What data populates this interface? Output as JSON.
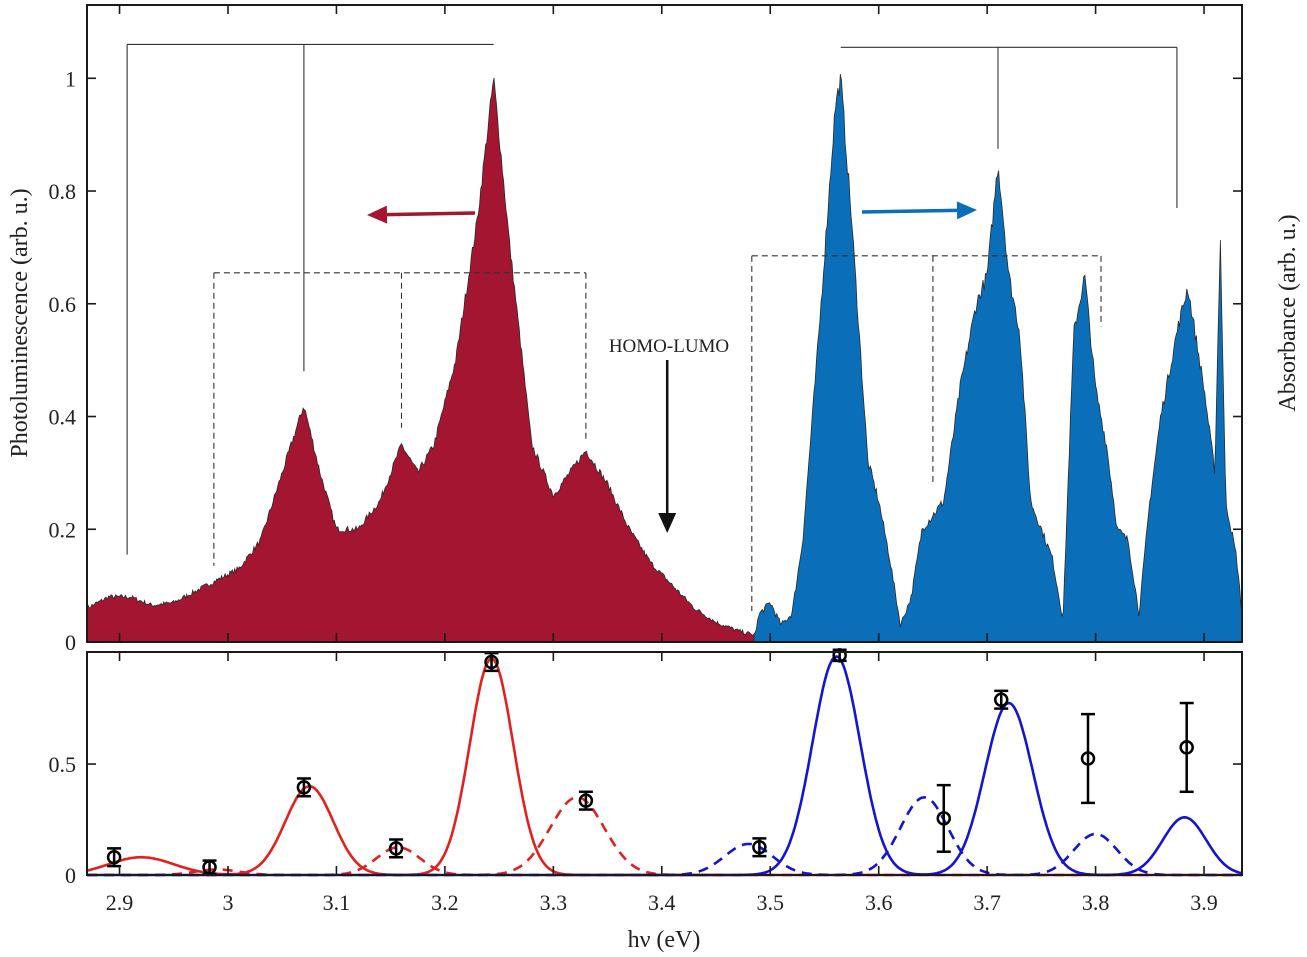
{
  "colors": {
    "pl_fill": "#A31530",
    "abs_fill": "#0A6FB8",
    "red": "#E32020",
    "blue": "#1414D2",
    "arrow_pl": "#A31530",
    "arrow_abs": "#0A6FB8",
    "frame": "#1a1a1a"
  },
  "chart_data": [
    {
      "type": "area",
      "panel": "top",
      "ylabel_left": "Photoluminescence (arb. u.)",
      "ylabel_right": "Absorbance (arb. u.)",
      "xlim": [
        2.87,
        3.935
      ],
      "ylim": [
        0,
        1.13
      ],
      "yticks": [
        0,
        0.2,
        0.4,
        0.6,
        0.8,
        1
      ],
      "ytick_labels": [
        "0",
        "0.2",
        "0.4",
        "0.6",
        "0.8",
        "1"
      ],
      "annotation": "HOMO-LUMO",
      "annotation_arrow_x": 3.405,
      "series": [
        {
          "kind": "photoluminescence",
          "range": [
            2.87,
            3.49
          ],
          "points": [
            [
              2.87,
              0.06
            ],
            [
              2.89,
              0.08
            ],
            [
              2.91,
              0.08
            ],
            [
              2.93,
              0.065
            ],
            [
              2.95,
              0.07
            ],
            [
              2.97,
              0.09
            ],
            [
              2.99,
              0.11
            ],
            [
              3.01,
              0.13
            ],
            [
              3.03,
              0.18
            ],
            [
              3.05,
              0.3
            ],
            [
              3.07,
              0.42
            ],
            [
              3.085,
              0.3
            ],
            [
              3.1,
              0.2
            ],
            [
              3.12,
              0.2
            ],
            [
              3.14,
              0.25
            ],
            [
              3.16,
              0.35
            ],
            [
              3.175,
              0.3
            ],
            [
              3.19,
              0.35
            ],
            [
              3.21,
              0.5
            ],
            [
              3.23,
              0.75
            ],
            [
              3.245,
              1.0
            ],
            [
              3.26,
              0.7
            ],
            [
              3.28,
              0.35
            ],
            [
              3.3,
              0.26
            ],
            [
              3.315,
              0.3
            ],
            [
              3.33,
              0.34
            ],
            [
              3.35,
              0.28
            ],
            [
              3.37,
              0.2
            ],
            [
              3.39,
              0.14
            ],
            [
              3.41,
              0.1
            ],
            [
              3.43,
              0.06
            ],
            [
              3.45,
              0.035
            ],
            [
              3.47,
              0.02
            ],
            [
              3.49,
              0.01
            ]
          ]
        },
        {
          "kind": "absorbance",
          "range": [
            3.485,
            3.935
          ],
          "points": [
            [
              3.485,
              0.01
            ],
            [
              3.49,
              0.05
            ],
            [
              3.5,
              0.07
            ],
            [
              3.51,
              0.03
            ],
            [
              3.52,
              0.05
            ],
            [
              3.53,
              0.18
            ],
            [
              3.545,
              0.55
            ],
            [
              3.56,
              0.95
            ],
            [
              3.565,
              1.0
            ],
            [
              3.575,
              0.75
            ],
            [
              3.59,
              0.32
            ],
            [
              3.6,
              0.25
            ],
            [
              3.61,
              0.15
            ],
            [
              3.62,
              0.03
            ],
            [
              3.63,
              0.08
            ],
            [
              3.64,
              0.2
            ],
            [
              3.66,
              0.25
            ],
            [
              3.675,
              0.45
            ],
            [
              3.69,
              0.6
            ],
            [
              3.7,
              0.65
            ],
            [
              3.71,
              0.85
            ],
            [
              3.72,
              0.65
            ],
            [
              3.73,
              0.55
            ],
            [
              3.74,
              0.25
            ],
            [
              3.75,
              0.2
            ],
            [
              3.76,
              0.15
            ],
            [
              3.77,
              0.04
            ],
            [
              3.775,
              0.3
            ],
            [
              3.78,
              0.55
            ],
            [
              3.79,
              0.65
            ],
            [
              3.8,
              0.45
            ],
            [
              3.81,
              0.35
            ],
            [
              3.82,
              0.2
            ],
            [
              3.83,
              0.18
            ],
            [
              3.84,
              0.05
            ],
            [
              3.85,
              0.25
            ],
            [
              3.86,
              0.4
            ],
            [
              3.875,
              0.55
            ],
            [
              3.885,
              0.63
            ],
            [
              3.9,
              0.45
            ],
            [
              3.91,
              0.3
            ],
            [
              3.915,
              0.72
            ],
            [
              3.92,
              0.25
            ],
            [
              3.93,
              0.15
            ],
            [
              3.935,
              0.05
            ]
          ]
        }
      ],
      "solid_brackets": [
        {
          "x": [
            2.907,
            3.07,
            3.245
          ],
          "top": 1.06,
          "bottoms": [
            0.155,
            0.48,
            1.06
          ]
        },
        {
          "x": [
            3.565,
            3.71,
            3.875
          ],
          "top": 1.055,
          "bottoms": [
            1.055,
            0.875,
            0.77
          ]
        }
      ],
      "dashed_brackets": [
        {
          "x": [
            2.987,
            3.16,
            3.33
          ],
          "top": 0.655,
          "bottoms": [
            0.135,
            0.38,
            0.36
          ]
        },
        {
          "x": [
            3.483,
            3.65,
            3.805
          ],
          "top": 0.685,
          "bottoms": [
            0.055,
            0.28,
            0.56
          ]
        }
      ]
    },
    {
      "type": "line",
      "panel": "bottom",
      "xlabel": "hν (eV)",
      "xlim": [
        2.87,
        3.935
      ],
      "ylim": [
        0,
        1.005
      ],
      "xticks": [
        2.9,
        3.0,
        3.1,
        3.2,
        3.3,
        3.4,
        3.5,
        3.6,
        3.7,
        3.8,
        3.9
      ],
      "xtick_labels": [
        "2.9",
        "3",
        "3.1",
        "3.2",
        "3.3",
        "3.4",
        "3.5",
        "3.6",
        "3.7",
        "3.8",
        "3.9"
      ],
      "yticks": [
        0,
        0.5
      ],
      "ytick_labels": [
        "0",
        "0.5"
      ],
      "series": [
        {
          "color": "red",
          "style": "solid",
          "gaussians": [
            {
              "center": 2.92,
              "amp": 0.08,
              "sigma": 0.03
            },
            {
              "center": 3.075,
              "amp": 0.4,
              "sigma": 0.022
            },
            {
              "center": 3.243,
              "amp": 0.975,
              "sigma": 0.02
            }
          ]
        },
        {
          "color": "red",
          "style": "dashed",
          "gaussians": [
            {
              "center": 2.99,
              "amp": 0.025,
              "sigma": 0.02
            },
            {
              "center": 3.157,
              "amp": 0.125,
              "sigma": 0.02
            },
            {
              "center": 3.322,
              "amp": 0.35,
              "sigma": 0.025
            }
          ]
        },
        {
          "color": "blue",
          "style": "solid",
          "gaussians": [
            {
              "center": 3.561,
              "amp": 0.985,
              "sigma": 0.022
            },
            {
              "center": 3.72,
              "amp": 0.775,
              "sigma": 0.022
            },
            {
              "center": 3.882,
              "amp": 0.26,
              "sigma": 0.02
            }
          ]
        },
        {
          "color": "blue",
          "style": "dashed",
          "gaussians": [
            {
              "center": 3.48,
              "amp": 0.14,
              "sigma": 0.022
            },
            {
              "center": 3.642,
              "amp": 0.35,
              "sigma": 0.022
            },
            {
              "center": 3.8,
              "amp": 0.185,
              "sigma": 0.02
            }
          ]
        }
      ],
      "points": [
        {
          "x": 2.895,
          "y": 0.08,
          "err": 0.04
        },
        {
          "x": 2.983,
          "y": 0.035,
          "err": 0.03
        },
        {
          "x": 3.07,
          "y": 0.395,
          "err": 0.04
        },
        {
          "x": 3.155,
          "y": 0.12,
          "err": 0.04
        },
        {
          "x": 3.243,
          "y": 0.96,
          "err": 0.04
        },
        {
          "x": 3.33,
          "y": 0.335,
          "err": 0.04
        },
        {
          "x": 3.49,
          "y": 0.125,
          "err": 0.04
        },
        {
          "x": 3.564,
          "y": 0.99,
          "err": 0.025
        },
        {
          "x": 3.66,
          "y": 0.255,
          "err": 0.15
        },
        {
          "x": 3.713,
          "y": 0.79,
          "err": 0.04
        },
        {
          "x": 3.793,
          "y": 0.525,
          "err": 0.2
        },
        {
          "x": 3.884,
          "y": 0.575,
          "err": 0.2
        }
      ]
    }
  ]
}
